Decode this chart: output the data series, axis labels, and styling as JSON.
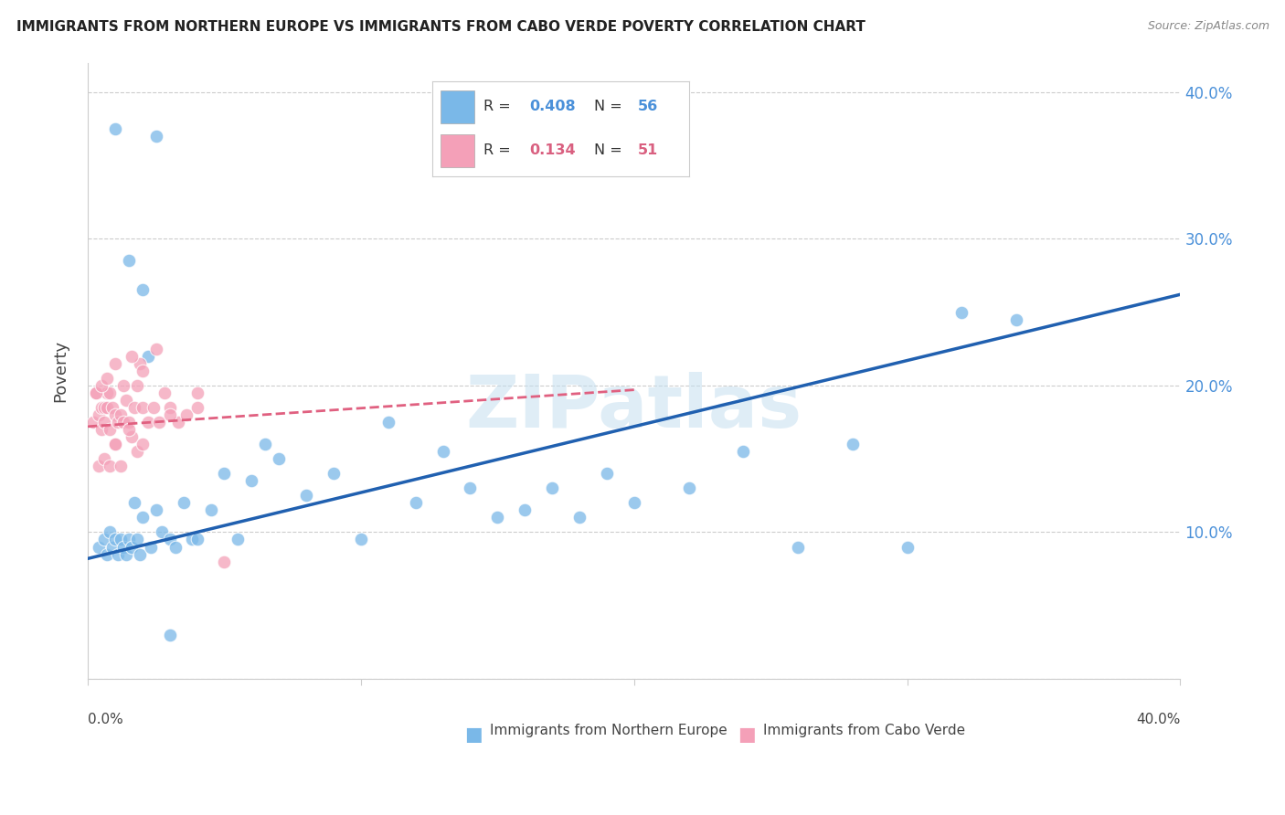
{
  "title": "IMMIGRANTS FROM NORTHERN EUROPE VS IMMIGRANTS FROM CABO VERDE POVERTY CORRELATION CHART",
  "source": "Source: ZipAtlas.com",
  "ylabel": "Poverty",
  "y_ticks": [
    0.0,
    0.1,
    0.2,
    0.3,
    0.4
  ],
  "y_tick_labels": [
    "",
    "10.0%",
    "20.0%",
    "30.0%",
    "40.0%"
  ],
  "xlim": [
    0.0,
    0.4
  ],
  "ylim": [
    0.0,
    0.42
  ],
  "blue_R": "0.408",
  "blue_N": "56",
  "pink_R": "0.134",
  "pink_N": "51",
  "blue_color": "#7ab8e8",
  "pink_color": "#f4a0b8",
  "blue_line_color": "#2060b0",
  "pink_line_color": "#e06080",
  "watermark": "ZIPatlas",
  "blue_line_x0": 0.0,
  "blue_line_y0": 0.082,
  "blue_line_x1": 0.4,
  "blue_line_y1": 0.262,
  "pink_line_x0": 0.0,
  "pink_line_y0": 0.172,
  "pink_line_x1": 0.2,
  "pink_line_y1": 0.197,
  "blue_x": [
    0.004,
    0.006,
    0.007,
    0.008,
    0.009,
    0.01,
    0.011,
    0.012,
    0.013,
    0.014,
    0.015,
    0.016,
    0.017,
    0.018,
    0.019,
    0.02,
    0.022,
    0.023,
    0.025,
    0.027,
    0.03,
    0.032,
    0.035,
    0.038,
    0.04,
    0.045,
    0.05,
    0.055,
    0.06,
    0.065,
    0.07,
    0.08,
    0.09,
    0.1,
    0.11,
    0.12,
    0.13,
    0.14,
    0.15,
    0.16,
    0.17,
    0.18,
    0.19,
    0.2,
    0.22,
    0.24,
    0.26,
    0.28,
    0.3,
    0.32,
    0.01,
    0.015,
    0.02,
    0.025,
    0.03,
    0.34
  ],
  "blue_y": [
    0.09,
    0.095,
    0.085,
    0.1,
    0.09,
    0.095,
    0.085,
    0.095,
    0.09,
    0.085,
    0.095,
    0.09,
    0.12,
    0.095,
    0.085,
    0.11,
    0.22,
    0.09,
    0.115,
    0.1,
    0.095,
    0.09,
    0.12,
    0.095,
    0.095,
    0.115,
    0.14,
    0.095,
    0.135,
    0.16,
    0.15,
    0.125,
    0.14,
    0.095,
    0.175,
    0.12,
    0.155,
    0.13,
    0.11,
    0.115,
    0.13,
    0.11,
    0.14,
    0.12,
    0.13,
    0.155,
    0.09,
    0.16,
    0.09,
    0.25,
    0.375,
    0.285,
    0.265,
    0.37,
    0.03,
    0.245
  ],
  "pink_x": [
    0.002,
    0.003,
    0.004,
    0.005,
    0.005,
    0.006,
    0.006,
    0.007,
    0.007,
    0.008,
    0.008,
    0.009,
    0.01,
    0.01,
    0.011,
    0.012,
    0.013,
    0.014,
    0.015,
    0.016,
    0.017,
    0.018,
    0.019,
    0.02,
    0.022,
    0.024,
    0.026,
    0.028,
    0.03,
    0.033,
    0.036,
    0.04,
    0.004,
    0.006,
    0.008,
    0.01,
    0.012,
    0.015,
    0.018,
    0.02,
    0.003,
    0.005,
    0.007,
    0.01,
    0.013,
    0.016,
    0.02,
    0.025,
    0.03,
    0.04,
    0.05
  ],
  "pink_y": [
    0.175,
    0.195,
    0.18,
    0.185,
    0.17,
    0.185,
    0.175,
    0.195,
    0.185,
    0.17,
    0.195,
    0.185,
    0.16,
    0.18,
    0.175,
    0.18,
    0.175,
    0.19,
    0.175,
    0.165,
    0.185,
    0.2,
    0.215,
    0.185,
    0.175,
    0.185,
    0.175,
    0.195,
    0.185,
    0.175,
    0.18,
    0.195,
    0.145,
    0.15,
    0.145,
    0.16,
    0.145,
    0.17,
    0.155,
    0.16,
    0.195,
    0.2,
    0.205,
    0.215,
    0.2,
    0.22,
    0.21,
    0.225,
    0.18,
    0.185,
    0.08
  ]
}
